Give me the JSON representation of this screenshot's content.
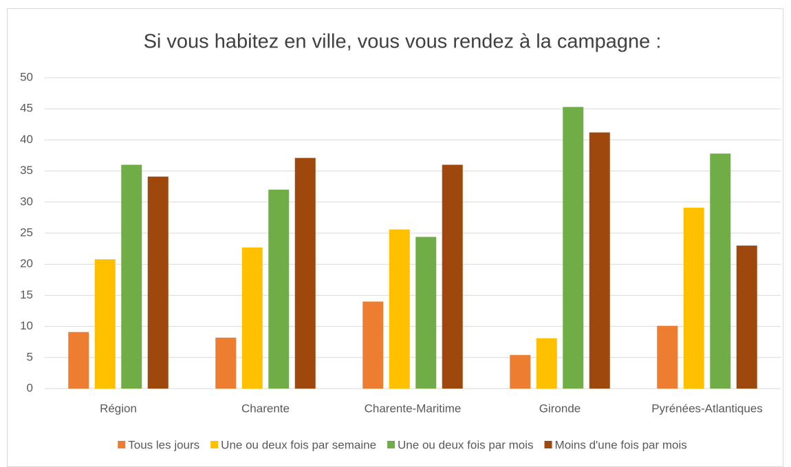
{
  "chart_data": {
    "type": "bar",
    "title": "Si vous habitez en ville, vous vous rendez à la campagne :",
    "categories": [
      "Région",
      "Charente",
      "Charente-Maritime",
      "Gironde",
      "Pyrénées-Atlantiques"
    ],
    "series": [
      {
        "name": "Tous les jours",
        "color": "#ed7d31",
        "values": [
          9.1,
          8.2,
          14,
          5.4,
          10.1
        ]
      },
      {
        "name": "Une ou deux fois par semaine",
        "color": "#ffc000",
        "values": [
          20.8,
          22.7,
          25.6,
          8.1,
          29.1
        ]
      },
      {
        "name": "Une ou deux fois par mois",
        "color": "#70ad47",
        "values": [
          36,
          32,
          24.4,
          45.3,
          37.8
        ]
      },
      {
        "name": "Moins d'une fois par mois",
        "color": "#9e480e",
        "values": [
          34.1,
          37.1,
          36,
          41.2,
          23
        ]
      }
    ],
    "ylim": [
      0,
      50
    ],
    "yticks": [
      0,
      5,
      10,
      15,
      20,
      25,
      30,
      35,
      40,
      45,
      50
    ],
    "grid": true,
    "legend": "bottom"
  }
}
